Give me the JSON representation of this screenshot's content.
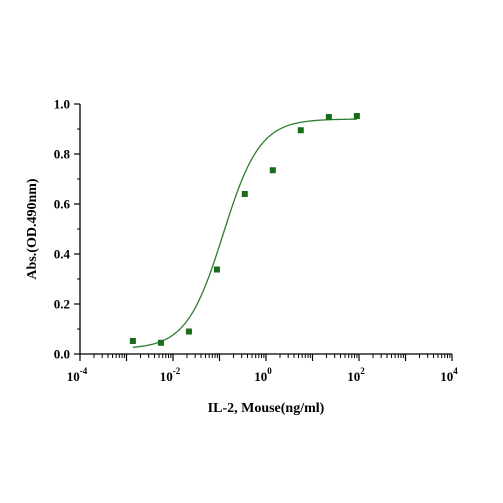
{
  "chart_data": {
    "type": "scatter",
    "title": "",
    "xlabel": "IL-2, Mouse(ng/ml)",
    "ylabel": "Abs.(OD.490nm)",
    "x_scale": "log10",
    "xlim": [
      0.0001,
      10000
    ],
    "ylim": [
      0,
      1.0
    ],
    "grid": false,
    "x_ticks": [
      {
        "value": 0.0001,
        "base": "10",
        "exp": "-4"
      },
      {
        "value": 0.01,
        "base": "10",
        "exp": "-2"
      },
      {
        "value": 1,
        "base": "10",
        "exp": "0"
      },
      {
        "value": 100,
        "base": "10",
        "exp": "2"
      },
      {
        "value": 10000,
        "base": "10",
        "exp": "4"
      }
    ],
    "y_ticks": [
      {
        "value": 0.0,
        "label": "0.0"
      },
      {
        "value": 0.2,
        "label": "0.2"
      },
      {
        "value": 0.4,
        "label": "0.4"
      },
      {
        "value": 0.6,
        "label": "0.6"
      },
      {
        "value": 0.8,
        "label": "0.8"
      },
      {
        "value": 1.0,
        "label": "1.0"
      }
    ],
    "series": [
      {
        "marker_color": "#1a6b1a",
        "line_color": "#2e7d32",
        "points": [
          {
            "x": 0.00137,
            "y": 0.052
          },
          {
            "x": 0.0055,
            "y": 0.045
          },
          {
            "x": 0.022,
            "y": 0.09
          },
          {
            "x": 0.088,
            "y": 0.338
          },
          {
            "x": 0.35,
            "y": 0.64
          },
          {
            "x": 1.4,
            "y": 0.735
          },
          {
            "x": 5.6,
            "y": 0.895
          },
          {
            "x": 22.5,
            "y": 0.948
          },
          {
            "x": 90,
            "y": 0.952
          }
        ],
        "fit": {
          "model": "4PL",
          "bottom": 0.02,
          "top": 0.94,
          "ec50": 0.12,
          "hill": 1.1
        }
      }
    ]
  }
}
